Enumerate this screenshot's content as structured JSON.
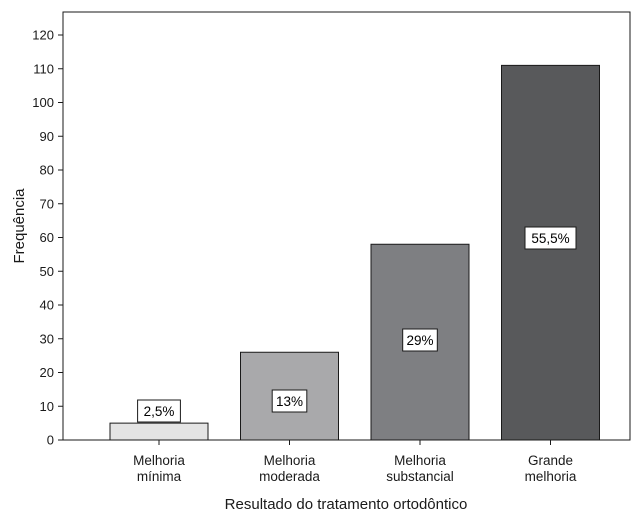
{
  "chart_data": {
    "type": "bar",
    "title": "",
    "xlabel": "Resultado do tratamento ortodôntico",
    "ylabel": "Frequência",
    "ylim": [
      0,
      120
    ],
    "yticks": [
      "0",
      "10",
      "20",
      "30",
      "40",
      "50",
      "60",
      "70",
      "80",
      "90",
      "100",
      "110",
      "120"
    ],
    "grid": false,
    "legend": "none",
    "categories": [
      [
        "Melhoria",
        "mínima"
      ],
      [
        "Melhoria",
        "moderada"
      ],
      [
        "Melhoria",
        "substancial"
      ],
      [
        "Grande",
        "melhoria"
      ]
    ],
    "values": [
      5,
      26,
      58,
      111
    ],
    "data_labels": [
      "2,5%",
      "13%",
      "29%",
      "55,5%"
    ],
    "colors": [
      "#e4e4e4",
      "#a9a9ab",
      "#7e7f82",
      "#58595b"
    ]
  }
}
